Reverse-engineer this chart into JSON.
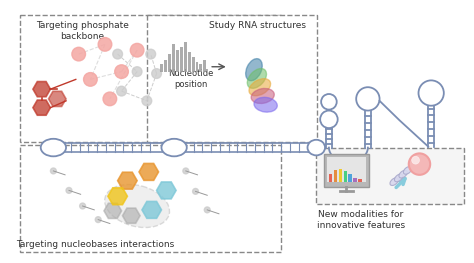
{
  "bg_color": "#ffffff",
  "text_color": "#333333",
  "box_border_color": "#aaaaaa",
  "rna_strand_color": "#7a8db3",
  "title1": "Targeting phosphate\nbackbone",
  "title2": "Study RNA structures",
  "title3": "Targeting nucleobases interactions",
  "title4": "New modalities for\ninnovative features",
  "nucleotide_label": "Nucleotide\nposition",
  "figsize": [
    4.74,
    2.63
  ],
  "dpi": 100,
  "pink": "#f4a7a3",
  "red": "#c0392b",
  "orange": "#e8952e",
  "yellow": "#f0c419",
  "cyan_b": "#7ec8d8",
  "gray_mol": "#cccccc",
  "gray_b": "#aaaaaa",
  "bar_color": "#9e9e9e",
  "bar_heights": [
    8,
    12,
    18,
    28,
    22,
    25,
    30,
    20,
    15,
    10,
    8,
    12
  ],
  "spec_colors": [
    "#e74c3c",
    "#e67e22",
    "#f1c40f",
    "#2ecc71",
    "#3498db",
    "#9b59b6",
    "#e74c3c"
  ],
  "rna_3d_colors": [
    "#3a7ca5",
    "#6dbf67",
    "#e8a838",
    "#c75b7a",
    "#7b68ee"
  ]
}
